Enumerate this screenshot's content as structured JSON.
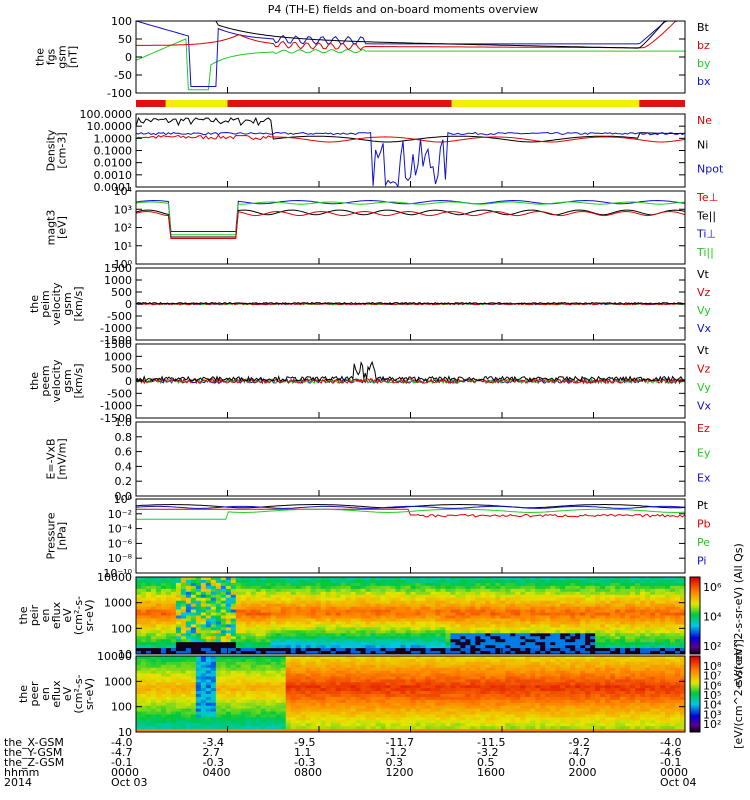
{
  "title": "P4 (TH-E) fields and on-board moments overview",
  "colors": {
    "black": "#000000",
    "red": "#e00000",
    "green": "#22cc22",
    "blue": "#1010d0",
    "bar_red": "#e01010",
    "bar_yellow": "#f0f000"
  },
  "chart_data": [
    {
      "type": "line",
      "name": "panel-fgs",
      "ylabel": [
        "the",
        "fgs",
        "gsm",
        "[nT]"
      ],
      "yticks": [
        "100",
        "50",
        "0",
        "-50",
        "-100"
      ],
      "ylim": [
        -120,
        100
      ],
      "scale": "linear",
      "legend": [
        {
          "label": "Bt",
          "color": "#000000"
        },
        {
          "label": "bz",
          "color": "#e00000"
        },
        {
          "label": "by",
          "color": "#22cc22"
        },
        {
          "label": "bx",
          "color": "#1010d0"
        }
      ]
    },
    {
      "type": "line",
      "name": "panel-density",
      "ylabel": [
        "Density",
        "[cm-3]"
      ],
      "yticks": [
        "100.0000",
        "10.0000",
        "1.0000",
        "0.1000",
        "0.0100",
        "0.0010",
        "0.0001"
      ],
      "ylim": [
        0.0001,
        100
      ],
      "scale": "log",
      "legend": [
        {
          "label": "Ne",
          "color": "#e00000"
        },
        {
          "label": "Ni",
          "color": "#000000"
        },
        {
          "label": "Npot",
          "color": "#1010d0"
        }
      ]
    },
    {
      "type": "line",
      "name": "panel-temperature",
      "ylabel": [
        "magt3",
        "[eV]"
      ],
      "yticks": [
        "10⁴",
        "10³",
        "10²",
        "10¹",
        "10⁰"
      ],
      "ylim": [
        1,
        10000
      ],
      "scale": "log",
      "legend": [
        {
          "label": "Te⊥",
          "color": "#e00000"
        },
        {
          "label": "Te||",
          "color": "#000000"
        },
        {
          "label": "Ti⊥",
          "color": "#1010d0"
        },
        {
          "label": "Ti||",
          "color": "#22cc22"
        }
      ]
    },
    {
      "type": "line",
      "name": "panel-peim-velocity",
      "ylabel": [
        "the",
        "peim",
        "velocity",
        "gsm",
        "[km/s]"
      ],
      "yticks": [
        "1500",
        "1000",
        "500",
        "0",
        "-500",
        "-1000",
        "-1500"
      ],
      "ylim": [
        -1500,
        1500
      ],
      "scale": "linear",
      "legend": [
        {
          "label": "Vt",
          "color": "#000000"
        },
        {
          "label": "Vz",
          "color": "#e00000"
        },
        {
          "label": "Vy",
          "color": "#22cc22"
        },
        {
          "label": "Vx",
          "color": "#1010d0"
        }
      ]
    },
    {
      "type": "line",
      "name": "panel-peem-velocity",
      "ylabel": [
        "the",
        "peem",
        "velocity",
        "gsm",
        "[km/s]"
      ],
      "yticks": [
        "1500",
        "1000",
        "500",
        "0",
        "-500",
        "-1000",
        "-1500"
      ],
      "ylim": [
        -1500,
        1500
      ],
      "scale": "linear",
      "legend": [
        {
          "label": "Vt",
          "color": "#000000"
        },
        {
          "label": "Vz",
          "color": "#e00000"
        },
        {
          "label": "Vy",
          "color": "#22cc22"
        },
        {
          "label": "Vx",
          "color": "#1010d0"
        }
      ]
    },
    {
      "type": "line",
      "name": "panel-efield",
      "ylabel": [
        "E=-VxB",
        "[mV/m]"
      ],
      "yticks": [
        "1.0",
        "0.8",
        "0.6",
        "0.4",
        "0.2",
        "0.0"
      ],
      "ylim": [
        0,
        1
      ],
      "scale": "linear",
      "legend": [
        {
          "label": "Ez",
          "color": "#e00000"
        },
        {
          "label": "Ey",
          "color": "#22cc22"
        },
        {
          "label": "Ex",
          "color": "#1010d0"
        }
      ]
    },
    {
      "type": "line",
      "name": "panel-pressure",
      "ylabel": [
        "Pressure",
        "[nPa]"
      ],
      "yticks": [
        "10⁰",
        "10⁻²",
        "10⁻⁴",
        "10⁻⁶",
        "10⁻⁸",
        "10⁻¹⁰"
      ],
      "ylim": [
        1e-10,
        10
      ],
      "scale": "log",
      "legend": [
        {
          "label": "Pt",
          "color": "#000000"
        },
        {
          "label": "Pb",
          "color": "#e00000"
        },
        {
          "label": "Pe",
          "color": "#22cc22"
        },
        {
          "label": "Pi",
          "color": "#1010d0"
        }
      ]
    },
    {
      "type": "heatmap",
      "name": "panel-ion-spectrogram",
      "ylabel": [
        "the",
        "peir",
        "en",
        "eflux",
        "eV",
        "(cm²-s-",
        "sr-eV)"
      ],
      "yticks": [
        "10000",
        "1000",
        "100",
        "10"
      ],
      "ylim": [
        10,
        20000
      ],
      "scale": "log",
      "colorbar_ticks": [
        "10⁶",
        "10⁴",
        "10²"
      ],
      "colorbar_label": "eV/(cm^2-s-sr-eV) (All Qs)"
    },
    {
      "type": "heatmap",
      "name": "panel-electron-spectrogram",
      "ylabel": [
        "the",
        "peer",
        "en",
        "eflux",
        "eV",
        "(cm²-s-",
        "sr-eV)"
      ],
      "yticks": [
        "10000",
        "1000",
        "100",
        "10"
      ],
      "ylim": [
        10,
        20000
      ],
      "scale": "log",
      "colorbar_ticks": [
        "10⁸",
        "10⁷",
        "10⁶",
        "10⁵",
        "10⁴",
        "10³",
        "10²"
      ],
      "colorbar_label": "[eV/(cm^2-s-sr-eV)]"
    }
  ],
  "x_axis": {
    "row_labels": [
      "the_X-GSM",
      "the_Y-GSM",
      "the_Z-GSM",
      "hhmm",
      "2014"
    ],
    "columns": [
      {
        "t": 0,
        "values": [
          "-4.0",
          "-4.7",
          "-0.1",
          "0000",
          "Oct 03"
        ]
      },
      {
        "t": 4,
        "values": [
          "-3.4",
          "2.7",
          "-0.3",
          "0400",
          ""
        ]
      },
      {
        "t": 8,
        "values": [
          "-9.5",
          "1.1",
          "-0.3",
          "0800",
          ""
        ]
      },
      {
        "t": 12,
        "values": [
          "-11.7",
          "-1.2",
          "0.3",
          "1200",
          ""
        ]
      },
      {
        "t": 16,
        "values": [
          "-11.5",
          "-3.2",
          "0.5",
          "1600",
          ""
        ]
      },
      {
        "t": 20,
        "values": [
          "-9.2",
          "-4.7",
          "0.0",
          "2000",
          ""
        ]
      },
      {
        "t": 24,
        "values": [
          "-4.0",
          "-4.6",
          "-0.1",
          "0000",
          "Oct 04"
        ]
      }
    ]
  }
}
